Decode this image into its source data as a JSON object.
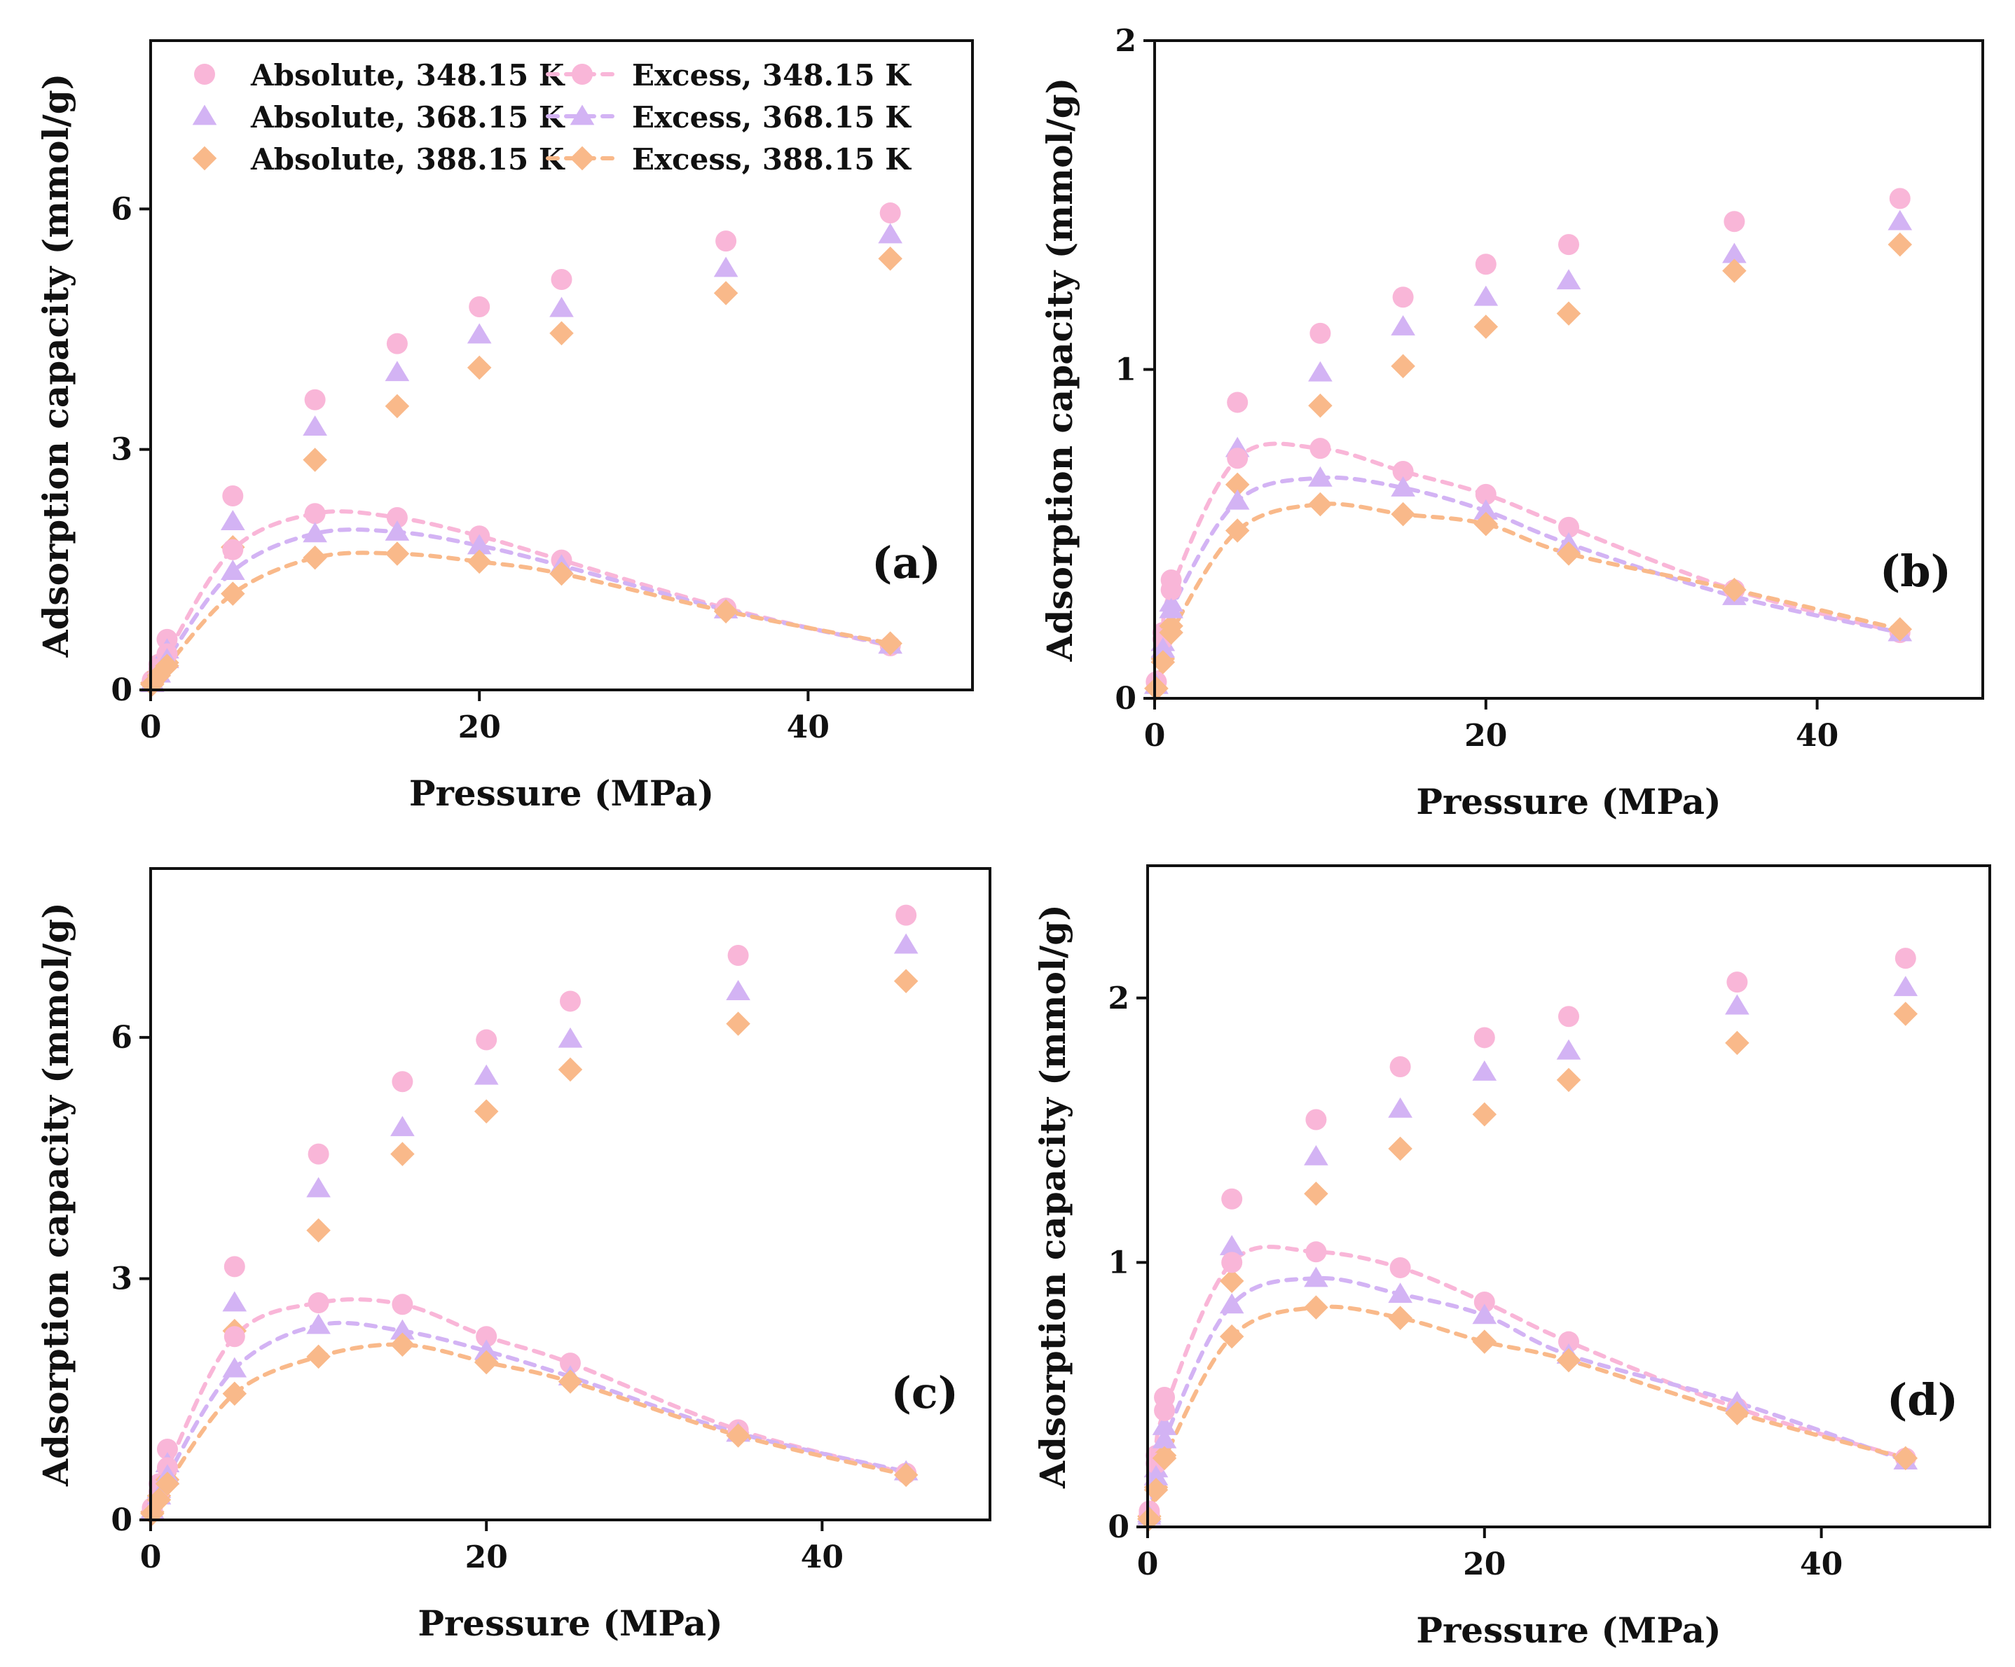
{
  "colors": {
    "348.15 K": "#f9b6d8",
    "368.15 K": "#d3b3f4",
    "388.15 K": "#f9b98a"
  },
  "legend": [
    {
      "label": "Absolute, 348.15 K",
      "kind": "absolute",
      "temp": "348.15 K",
      "marker": "circle"
    },
    {
      "label": "Excess, 348.15 K",
      "kind": "excess",
      "temp": "348.15 K",
      "marker": "circle"
    },
    {
      "label": "Absolute, 368.15 K",
      "kind": "absolute",
      "temp": "368.15 K",
      "marker": "triangle"
    },
    {
      "label": "Excess, 368.15 K",
      "kind": "excess",
      "temp": "368.15 K",
      "marker": "triangle"
    },
    {
      "label": "Absolute, 388.15 K",
      "kind": "absolute",
      "temp": "388.15 K",
      "marker": "diamond"
    },
    {
      "label": "Excess, 388.15 K",
      "kind": "excess",
      "temp": "388.15 K",
      "marker": "diamond"
    }
  ],
  "chart_data": [
    {
      "panel": "(a)",
      "type": "scatter",
      "xlabel": "Pressure (MPa)",
      "ylabel": "Adsorption capacity (mmol/g)",
      "xlim": [
        0,
        50
      ],
      "ylim": [
        0,
        8.1
      ],
      "xticks": [
        0,
        20,
        40
      ],
      "yticks": [
        0,
        3,
        6
      ],
      "x": [
        0.1,
        0.5,
        1,
        5,
        10,
        15,
        20,
        25,
        35,
        45
      ],
      "series": [
        {
          "name": "Absolute, 348.15 K",
          "temp": "348.15 K",
          "marker": "circle",
          "values": [
            0.12,
            0.32,
            0.63,
            2.42,
            3.62,
            4.32,
            4.78,
            5.12,
            5.6,
            5.95
          ]
        },
        {
          "name": "Absolute, 368.15 K",
          "temp": "368.15 K",
          "marker": "triangle",
          "values": [
            0.1,
            0.28,
            0.5,
            2.1,
            3.28,
            3.96,
            4.43,
            4.76,
            5.26,
            5.68
          ]
        },
        {
          "name": "Absolute, 388.15 K",
          "temp": "388.15 K",
          "marker": "diamond",
          "values": [
            0.09,
            0.22,
            0.34,
            1.78,
            2.87,
            3.54,
            4.02,
            4.45,
            4.95,
            5.38
          ]
        },
        {
          "name": "Excess, 348.15 K",
          "temp": "348.15 K",
          "marker": "circle",
          "values": [
            0.1,
            0.26,
            0.45,
            1.75,
            2.2,
            2.15,
            1.92,
            1.62,
            1.02,
            0.55
          ]
        },
        {
          "name": "Excess, 368.15 K",
          "temp": "368.15 K",
          "marker": "triangle",
          "values": [
            0.08,
            0.2,
            0.38,
            1.48,
            1.95,
            1.97,
            1.8,
            1.55,
            1.0,
            0.56
          ]
        },
        {
          "name": "Excess, 388.15 K",
          "temp": "388.15 K",
          "marker": "diamond",
          "values": [
            0.07,
            0.18,
            0.3,
            1.2,
            1.65,
            1.7,
            1.6,
            1.45,
            0.98,
            0.58
          ]
        }
      ]
    },
    {
      "panel": "(b)",
      "type": "scatter",
      "xlabel": "Pressure (MPa)",
      "ylabel": "Adsorption capacity (mmol/g)",
      "xlim": [
        0,
        50
      ],
      "ylim": [
        0,
        2
      ],
      "xticks": [
        0,
        20,
        40
      ],
      "yticks": [
        0,
        1,
        2
      ],
      "x": [
        0.1,
        0.5,
        1,
        5,
        10,
        15,
        20,
        25,
        35,
        45
      ],
      "series": [
        {
          "name": "Absolute, 348.15 K",
          "temp": "348.15 K",
          "marker": "circle",
          "values": [
            0.05,
            0.2,
            0.36,
            0.9,
            1.11,
            1.22,
            1.32,
            1.38,
            1.45,
            1.52
          ]
        },
        {
          "name": "Absolute, 368.15 K",
          "temp": "368.15 K",
          "marker": "triangle",
          "values": [
            0.04,
            0.17,
            0.29,
            0.76,
            0.99,
            1.13,
            1.22,
            1.27,
            1.35,
            1.45
          ]
        },
        {
          "name": "Absolute, 388.15 K",
          "temp": "388.15 K",
          "marker": "diamond",
          "values": [
            0.03,
            0.12,
            0.22,
            0.65,
            0.89,
            1.01,
            1.13,
            1.17,
            1.3,
            1.38
          ]
        },
        {
          "name": "Excess, 348.15 K",
          "temp": "348.15 K",
          "marker": "circle",
          "values": [
            0.05,
            0.18,
            0.33,
            0.73,
            0.76,
            0.69,
            0.62,
            0.52,
            0.33,
            0.2
          ]
        },
        {
          "name": "Excess, 368.15 K",
          "temp": "368.15 K",
          "marker": "triangle",
          "values": [
            0.04,
            0.15,
            0.27,
            0.6,
            0.67,
            0.64,
            0.57,
            0.47,
            0.31,
            0.2
          ]
        },
        {
          "name": "Excess, 388.15 K",
          "temp": "388.15 K",
          "marker": "diamond",
          "values": [
            0.03,
            0.11,
            0.2,
            0.51,
            0.59,
            0.56,
            0.53,
            0.44,
            0.33,
            0.21
          ]
        }
      ]
    },
    {
      "panel": "(c)",
      "type": "scatter",
      "xlabel": "Pressure (MPa)",
      "ylabel": "Adsorption capacity (mmol/g)",
      "xlim": [
        0,
        50
      ],
      "ylim": [
        0,
        8.1
      ],
      "xticks": [
        0,
        20,
        40
      ],
      "yticks": [
        0,
        3,
        6
      ],
      "x": [
        0.1,
        0.5,
        1,
        5,
        10,
        15,
        20,
        25,
        35,
        45
      ],
      "series": [
        {
          "name": "Absolute, 348.15 K",
          "temp": "348.15 K",
          "marker": "circle",
          "values": [
            0.15,
            0.45,
            0.88,
            3.15,
            4.55,
            5.45,
            5.97,
            6.45,
            7.02,
            7.52
          ]
        },
        {
          "name": "Absolute, 368.15 K",
          "temp": "368.15 K",
          "marker": "triangle",
          "values": [
            0.12,
            0.38,
            0.7,
            2.7,
            4.12,
            4.88,
            5.52,
            5.98,
            6.57,
            7.15
          ]
        },
        {
          "name": "Absolute, 388.15 K",
          "temp": "388.15 K",
          "marker": "diamond",
          "values": [
            0.1,
            0.3,
            0.5,
            2.35,
            3.6,
            4.55,
            5.08,
            5.6,
            6.17,
            6.7
          ]
        },
        {
          "name": "Excess, 348.15 K",
          "temp": "348.15 K",
          "marker": "circle",
          "values": [
            0.12,
            0.35,
            0.65,
            2.28,
            2.7,
            2.68,
            2.28,
            1.95,
            1.12,
            0.58
          ]
        },
        {
          "name": "Excess, 368.15 K",
          "temp": "368.15 K",
          "marker": "triangle",
          "values": [
            0.1,
            0.3,
            0.55,
            1.88,
            2.42,
            2.35,
            2.1,
            1.78,
            1.08,
            0.6
          ]
        },
        {
          "name": "Excess, 388.15 K",
          "temp": "388.15 K",
          "marker": "diamond",
          "values": [
            0.08,
            0.25,
            0.45,
            1.57,
            2.03,
            2.18,
            1.96,
            1.72,
            1.05,
            0.56
          ]
        }
      ]
    },
    {
      "panel": "(d)",
      "type": "scatter",
      "xlabel": "Pressure (MPa)",
      "ylabel": "Adsorption capacity (mmol/g)",
      "xlim": [
        0,
        50
      ],
      "ylim": [
        0,
        2.5
      ],
      "xticks": [
        0,
        20,
        40
      ],
      "yticks": [
        0,
        1,
        2
      ],
      "x": [
        0.1,
        0.5,
        1,
        5,
        10,
        15,
        20,
        25,
        35,
        45
      ],
      "series": [
        {
          "name": "Absolute, 348.15 K",
          "temp": "348.15 K",
          "marker": "circle",
          "values": [
            0.06,
            0.27,
            0.49,
            1.24,
            1.54,
            1.74,
            1.85,
            1.93,
            2.06,
            2.15
          ]
        },
        {
          "name": "Absolute, 368.15 K",
          "temp": "368.15 K",
          "marker": "triangle",
          "values": [
            0.05,
            0.22,
            0.38,
            1.06,
            1.4,
            1.58,
            1.72,
            1.8,
            1.97,
            2.04
          ]
        },
        {
          "name": "Absolute, 388.15 K",
          "temp": "388.15 K",
          "marker": "diamond",
          "values": [
            0.04,
            0.15,
            0.27,
            0.93,
            1.26,
            1.43,
            1.56,
            1.69,
            1.83,
            1.94
          ]
        },
        {
          "name": "Excess, 348.15 K",
          "temp": "348.15 K",
          "marker": "circle",
          "values": [
            0.05,
            0.24,
            0.44,
            1.0,
            1.04,
            0.98,
            0.85,
            0.7,
            0.45,
            0.26
          ]
        },
        {
          "name": "Excess, 368.15 K",
          "temp": "368.15 K",
          "marker": "triangle",
          "values": [
            0.04,
            0.19,
            0.33,
            0.84,
            0.94,
            0.88,
            0.8,
            0.65,
            0.47,
            0.25
          ]
        },
        {
          "name": "Excess, 388.15 K",
          "temp": "388.15 K",
          "marker": "diamond",
          "values": [
            0.03,
            0.14,
            0.26,
            0.72,
            0.83,
            0.79,
            0.7,
            0.63,
            0.43,
            0.26
          ]
        }
      ]
    }
  ]
}
